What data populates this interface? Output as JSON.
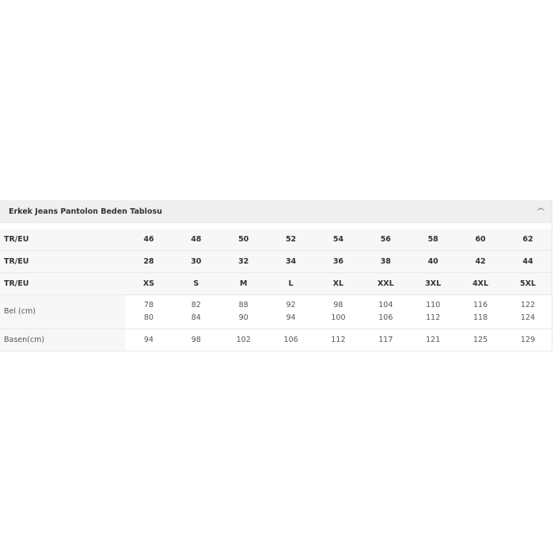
{
  "title": "Erkek Jeans Pantolon Beden Tablosu",
  "toggle_icon": "chevron-up-icon",
  "rows": [
    {
      "label": "TR/EU",
      "values": [
        "46",
        "48",
        "50",
        "52",
        "54",
        "56",
        "58",
        "60",
        "62"
      ]
    },
    {
      "label": "TR/EU",
      "values": [
        "28",
        "30",
        "32",
        "34",
        "36",
        "38",
        "40",
        "42",
        "44"
      ]
    },
    {
      "label": "TR/EU",
      "values": [
        "XS",
        "S",
        "M",
        "L",
        "XL",
        "XXL",
        "3XL",
        "4XL",
        "5XL"
      ]
    },
    {
      "label": "Bel (cm)",
      "values": [
        [
          "78",
          "80"
        ],
        [
          "82",
          "84"
        ],
        [
          "88",
          "90"
        ],
        [
          "92",
          "94"
        ],
        [
          "98",
          "100"
        ],
        [
          "104",
          "106"
        ],
        [
          "110",
          "112"
        ],
        [
          "116",
          "118"
        ],
        [
          "122",
          "124"
        ]
      ]
    },
    {
      "label": "Basen(cm)",
      "values": [
        "94",
        "98",
        "102",
        "106",
        "112",
        "117",
        "121",
        "125",
        "129"
      ]
    }
  ]
}
